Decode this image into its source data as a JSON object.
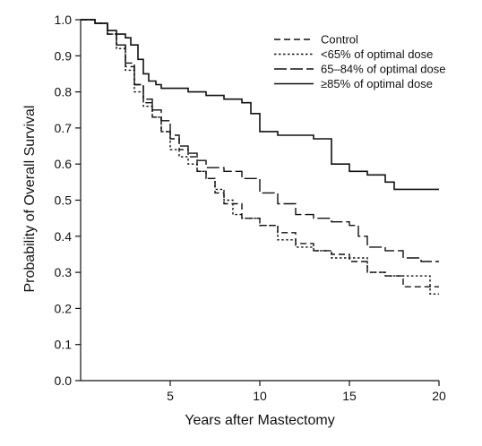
{
  "chart_data": {
    "type": "line",
    "title": "",
    "xlabel": "Years after Mastectomy",
    "ylabel": "Probability of Overall Survival",
    "xlim": [
      0,
      20
    ],
    "ylim": [
      0,
      1.0
    ],
    "xticks": [
      5,
      10,
      15,
      20
    ],
    "yticks": [
      0.0,
      0.1,
      0.2,
      0.3,
      0.4,
      0.5,
      0.6,
      0.7,
      0.8,
      0.9,
      1.0
    ],
    "ytick_labels": [
      "0.0",
      "0.1",
      "0.2",
      "0.3",
      "0.4",
      "0.5",
      "0.6",
      "0.7",
      "0.8",
      "0.9",
      "1.0"
    ],
    "grid": false,
    "legend_position": "top-right",
    "line_color": "#111111",
    "series": [
      {
        "name": "Control",
        "style": "dashed",
        "x": [
          0,
          0.8,
          1.5,
          2.0,
          2.5,
          3.0,
          3.5,
          4.0,
          4.5,
          5.0,
          5.5,
          6.0,
          6.5,
          7.0,
          7.5,
          8.0,
          9.0,
          10.0,
          11.0,
          12.0,
          13.0,
          14.0,
          15.0,
          16.0,
          17.0,
          18.0,
          19.0,
          20.0
        ],
        "y": [
          1.0,
          0.99,
          0.96,
          0.93,
          0.88,
          0.82,
          0.77,
          0.73,
          0.69,
          0.67,
          0.64,
          0.62,
          0.58,
          0.56,
          0.52,
          0.49,
          0.45,
          0.43,
          0.41,
          0.38,
          0.36,
          0.35,
          0.33,
          0.3,
          0.29,
          0.26,
          0.26,
          0.26
        ]
      },
      {
        "name": "<65% of optimal dose",
        "style": "dotted",
        "x": [
          0,
          0.8,
          1.5,
          2.0,
          2.5,
          3.0,
          3.5,
          4.0,
          4.5,
          5.0,
          5.5,
          6.0,
          6.5,
          7.0,
          7.5,
          8.0,
          8.5,
          9.0,
          10.0,
          11.0,
          12.0,
          13.0,
          14.0,
          15.0,
          16.0,
          17.0,
          18.0,
          19.0,
          19.5,
          20.0
        ],
        "y": [
          1.0,
          0.99,
          0.96,
          0.92,
          0.86,
          0.8,
          0.76,
          0.73,
          0.69,
          0.64,
          0.62,
          0.6,
          0.58,
          0.56,
          0.53,
          0.5,
          0.46,
          0.45,
          0.43,
          0.39,
          0.37,
          0.36,
          0.34,
          0.34,
          0.3,
          0.29,
          0.29,
          0.29,
          0.24,
          0.24
        ]
      },
      {
        "name": "65–84% of optimal dose",
        "style": "longdash",
        "x": [
          0,
          0.8,
          1.5,
          2.0,
          2.5,
          3.0,
          3.5,
          4.0,
          4.5,
          5.0,
          5.5,
          6.0,
          6.5,
          7.0,
          8.0,
          9.0,
          10.0,
          11.0,
          12.0,
          13.0,
          14.0,
          15.0,
          15.5,
          16.0,
          17.0,
          18.0,
          19.0,
          20.0
        ],
        "y": [
          1.0,
          0.99,
          0.96,
          0.93,
          0.87,
          0.82,
          0.78,
          0.75,
          0.72,
          0.68,
          0.65,
          0.63,
          0.61,
          0.59,
          0.58,
          0.56,
          0.52,
          0.49,
          0.46,
          0.45,
          0.44,
          0.43,
          0.4,
          0.37,
          0.36,
          0.34,
          0.33,
          0.33
        ]
      },
      {
        "name": "≥85% of optimal dose",
        "style": "solid",
        "x": [
          0,
          0.8,
          1.5,
          2.0,
          2.5,
          2.8,
          3.2,
          3.5,
          3.8,
          4.2,
          4.5,
          5.0,
          6.0,
          7.0,
          8.0,
          9.0,
          9.5,
          10.0,
          11.0,
          12.0,
          13.0,
          14.0,
          15.0,
          16.0,
          17.0,
          17.5,
          18.0,
          19.0,
          20.0
        ],
        "y": [
          1.0,
          0.99,
          0.97,
          0.96,
          0.95,
          0.93,
          0.89,
          0.85,
          0.83,
          0.82,
          0.81,
          0.81,
          0.8,
          0.79,
          0.78,
          0.77,
          0.74,
          0.69,
          0.68,
          0.68,
          0.67,
          0.6,
          0.58,
          0.57,
          0.55,
          0.53,
          0.53,
          0.53,
          0.53
        ]
      }
    ]
  }
}
